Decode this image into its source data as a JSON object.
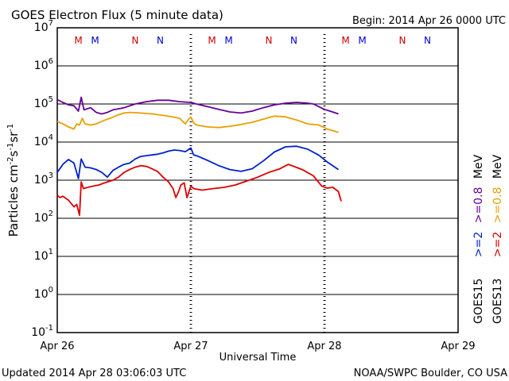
{
  "header": {
    "title": "GOES Electron Flux (5 minute data)",
    "begin": "Begin: 2014 Apr 26 0000 UTC"
  },
  "footer": {
    "updated": "Updated 2014 Apr 28 03:06:03 UTC",
    "credit": "NOAA/SWPC Boulder, CO USA"
  },
  "colors": {
    "purple": "#660099",
    "orange": "#e8a000",
    "blue": "#0022cc",
    "red": "#dd0000",
    "mark_red": "#cc0000",
    "mark_blue": "#0000cc"
  },
  "chart_data": {
    "type": "line",
    "yscale": "log",
    "ylabel_parts": [
      "Particles cm",
      "-2",
      "s",
      "-1",
      "sr",
      "-1"
    ],
    "xlabel": "Universal Time",
    "ylim_exp": [
      -1,
      7
    ],
    "ytick_labels": [
      {
        "base": "10",
        "exp": "7"
      },
      {
        "base": "10",
        "exp": "6"
      },
      {
        "base": "10",
        "exp": "5"
      },
      {
        "base": "10",
        "exp": "4"
      },
      {
        "base": "10",
        "exp": "3"
      },
      {
        "base": "10",
        "exp": "2"
      },
      {
        "base": "10",
        "exp": "1"
      },
      {
        "base": "10",
        "exp": "0"
      },
      {
        "base": "10",
        "exp": "-1"
      }
    ],
    "xlim_hours": [
      0,
      72
    ],
    "xticks": [
      {
        "label": "Apr 26",
        "hour": 0
      },
      {
        "label": "Apr 27",
        "hour": 24
      },
      {
        "label": "Apr 28",
        "hour": 48
      },
      {
        "label": "Apr 29",
        "hour": 72
      }
    ],
    "threshold": 1000,
    "markers": [
      {
        "label": "M",
        "hour": 3.8,
        "color": "#cc0000"
      },
      {
        "label": "M",
        "hour": 6.8,
        "color": "#0000cc"
      },
      {
        "label": "N",
        "hour": 14.0,
        "color": "#cc0000"
      },
      {
        "label": "N",
        "hour": 18.5,
        "color": "#0000cc"
      },
      {
        "label": "M",
        "hour": 27.8,
        "color": "#cc0000"
      },
      {
        "label": "M",
        "hour": 30.8,
        "color": "#0000cc"
      },
      {
        "label": "N",
        "hour": 38.0,
        "color": "#cc0000"
      },
      {
        "label": "N",
        "hour": 42.5,
        "color": "#0000cc"
      },
      {
        "label": "M",
        "hour": 51.8,
        "color": "#cc0000"
      },
      {
        "label": "M",
        "hour": 54.8,
        "color": "#0000cc"
      },
      {
        "label": "N",
        "hour": 62.0,
        "color": "#cc0000"
      },
      {
        "label": "N",
        "hour": 66.5,
        "color": "#0000cc"
      }
    ],
    "legend": {
      "position": "right",
      "columns": [
        {
          "satellite": "GOES13",
          "items": [
            {
              "text": ">=2",
              "color": "#dd0000"
            },
            {
              "text": ">=0.8",
              "color": "#e8a000"
            }
          ]
        },
        {
          "satellite": "GOES15",
          "items": [
            {
              "text": ">=2",
              "color": "#0022cc"
            },
            {
              "text": ">=0.8",
              "color": "#660099"
            }
          ]
        }
      ],
      "unit": "MeV"
    },
    "series": [
      {
        "key": "g15_08",
        "color": "#660099",
        "points": [
          [
            0,
            130000
          ],
          [
            1,
            110000
          ],
          [
            2,
            95000
          ],
          [
            3,
            90000
          ],
          [
            3.8,
            65000
          ],
          [
            4.3,
            150000
          ],
          [
            4.8,
            70000
          ],
          [
            6,
            80000
          ],
          [
            7,
            60000
          ],
          [
            8,
            55000
          ],
          [
            9,
            60000
          ],
          [
            10,
            70000
          ],
          [
            12,
            80000
          ],
          [
            14,
            100000
          ],
          [
            16,
            115000
          ],
          [
            18,
            125000
          ],
          [
            20,
            125000
          ],
          [
            22,
            115000
          ],
          [
            24,
            110000
          ],
          [
            25,
            100000
          ],
          [
            27,
            85000
          ],
          [
            29,
            72000
          ],
          [
            31,
            62000
          ],
          [
            33,
            58000
          ],
          [
            35,
            65000
          ],
          [
            37,
            80000
          ],
          [
            39,
            95000
          ],
          [
            41,
            105000
          ],
          [
            43,
            110000
          ],
          [
            45,
            105000
          ],
          [
            46,
            100000
          ],
          [
            47,
            85000
          ],
          [
            48,
            72000
          ],
          [
            49,
            65000
          ],
          [
            50.5,
            55000
          ]
        ]
      },
      {
        "key": "g13_08",
        "color": "#e8a000",
        "points": [
          [
            0,
            35000
          ],
          [
            1,
            30000
          ],
          [
            2,
            25000
          ],
          [
            3,
            22000
          ],
          [
            3.5,
            30000
          ],
          [
            4,
            28000
          ],
          [
            4.5,
            42000
          ],
          [
            5,
            30000
          ],
          [
            6,
            28000
          ],
          [
            7,
            30000
          ],
          [
            8,
            35000
          ],
          [
            9,
            40000
          ],
          [
            10,
            45000
          ],
          [
            11,
            52000
          ],
          [
            12,
            58000
          ],
          [
            13,
            60000
          ],
          [
            15,
            58000
          ],
          [
            17,
            55000
          ],
          [
            19,
            50000
          ],
          [
            21,
            45000
          ],
          [
            22,
            42000
          ],
          [
            23,
            30000
          ],
          [
            23.6,
            40000
          ],
          [
            24,
            45000
          ],
          [
            24.5,
            32000
          ],
          [
            25,
            28000
          ],
          [
            27,
            25000
          ],
          [
            29,
            24000
          ],
          [
            31,
            26000
          ],
          [
            33,
            29000
          ],
          [
            35,
            33000
          ],
          [
            37,
            40000
          ],
          [
            39,
            48000
          ],
          [
            41,
            46000
          ],
          [
            43,
            38000
          ],
          [
            45,
            30000
          ],
          [
            47,
            28000
          ],
          [
            48.5,
            22000
          ],
          [
            50.5,
            18000
          ]
        ]
      },
      {
        "key": "g15_2",
        "color": "#0022cc",
        "points": [
          [
            0,
            1600
          ],
          [
            1,
            2600
          ],
          [
            2,
            3500
          ],
          [
            3,
            2800
          ],
          [
            3.8,
            1100
          ],
          [
            4.3,
            3600
          ],
          [
            5,
            2200
          ],
          [
            6,
            2100
          ],
          [
            7,
            1900
          ],
          [
            8,
            1600
          ],
          [
            9,
            1200
          ],
          [
            10,
            1800
          ],
          [
            11,
            2200
          ],
          [
            12,
            2600
          ],
          [
            13,
            2800
          ],
          [
            14,
            3600
          ],
          [
            15,
            4200
          ],
          [
            16,
            4400
          ],
          [
            17,
            4600
          ],
          [
            18,
            4800
          ],
          [
            19,
            5200
          ],
          [
            20,
            5800
          ],
          [
            21,
            6200
          ],
          [
            22,
            6000
          ],
          [
            23,
            5600
          ],
          [
            24,
            7000
          ],
          [
            24.5,
            4600
          ],
          [
            25,
            4400
          ],
          [
            27,
            3300
          ],
          [
            29,
            2400
          ],
          [
            31,
            1900
          ],
          [
            33,
            1700
          ],
          [
            35,
            2000
          ],
          [
            37,
            3200
          ],
          [
            39,
            5500
          ],
          [
            41,
            7500
          ],
          [
            43,
            7800
          ],
          [
            45,
            6500
          ],
          [
            47,
            4500
          ],
          [
            48.5,
            3000
          ],
          [
            50.5,
            1900
          ]
        ]
      },
      {
        "key": "g13_2",
        "color": "#dd0000",
        "points": [
          [
            0,
            400
          ],
          [
            0.5,
            350
          ],
          [
            1,
            380
          ],
          [
            2,
            300
          ],
          [
            3,
            200
          ],
          [
            3.5,
            230
          ],
          [
            4,
            120
          ],
          [
            4.3,
            900
          ],
          [
            4.7,
            600
          ],
          [
            5.5,
            650
          ],
          [
            6.5,
            700
          ],
          [
            7.5,
            750
          ],
          [
            8.5,
            850
          ],
          [
            10,
            1000
          ],
          [
            11,
            1200
          ],
          [
            12,
            1600
          ],
          [
            13,
            1900
          ],
          [
            14,
            2200
          ],
          [
            15,
            2400
          ],
          [
            16,
            2300
          ],
          [
            17,
            2000
          ],
          [
            18,
            1700
          ],
          [
            19,
            1200
          ],
          [
            20,
            900
          ],
          [
            20.8,
            600
          ],
          [
            21.3,
            350
          ],
          [
            21.8,
            500
          ],
          [
            22.2,
            750
          ],
          [
            22.8,
            850
          ],
          [
            23.3,
            350
          ],
          [
            24,
            700
          ],
          [
            24.5,
            600
          ],
          [
            26,
            550
          ],
          [
            28,
            600
          ],
          [
            30,
            650
          ],
          [
            32,
            750
          ],
          [
            34,
            950
          ],
          [
            36,
            1200
          ],
          [
            38,
            1600
          ],
          [
            40,
            2000
          ],
          [
            41.5,
            2600
          ],
          [
            42.5,
            2300
          ],
          [
            44,
            1900
          ],
          [
            46,
            1300
          ],
          [
            47.5,
            700
          ],
          [
            48.5,
            620
          ],
          [
            49.5,
            650
          ],
          [
            50.5,
            500
          ],
          [
            51,
            280
          ]
        ]
      }
    ]
  }
}
